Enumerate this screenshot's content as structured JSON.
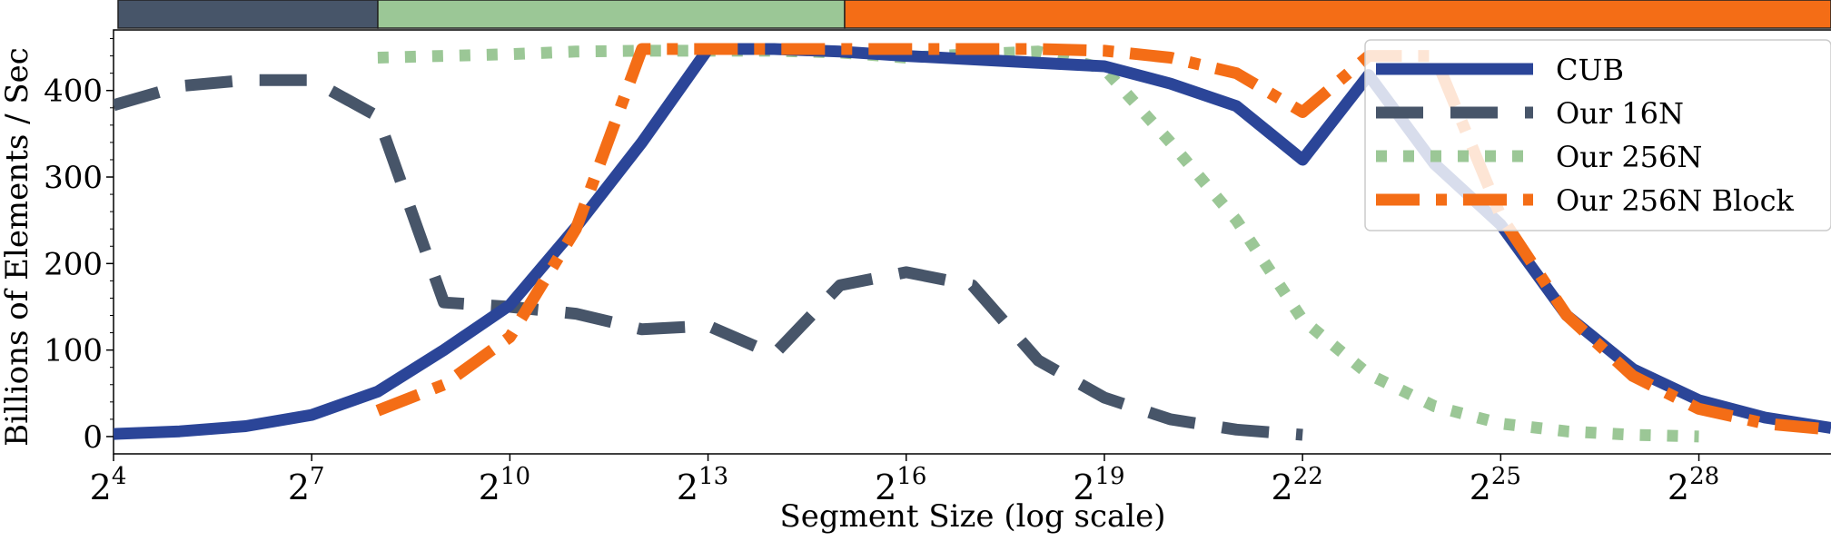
{
  "chart_data": {
    "type": "line",
    "xlabel": "Segment Size (log scale)",
    "ylabel": "Billions of Elements / Sec",
    "x_scale": "log2",
    "xlim_exponent": [
      4,
      30
    ],
    "ylim": [
      -20,
      470
    ],
    "x_ticks": [
      {
        "exp": 4,
        "base": "2",
        "sup": "4"
      },
      {
        "exp": 7,
        "base": "2",
        "sup": "7"
      },
      {
        "exp": 10,
        "base": "2",
        "sup": "10"
      },
      {
        "exp": 13,
        "base": "2",
        "sup": "13"
      },
      {
        "exp": 16,
        "base": "2",
        "sup": "16"
      },
      {
        "exp": 19,
        "base": "2",
        "sup": "19"
      },
      {
        "exp": 22,
        "base": "2",
        "sup": "22"
      },
      {
        "exp": 25,
        "base": "2",
        "sup": "25"
      },
      {
        "exp": 28,
        "base": "2",
        "sup": "28"
      }
    ],
    "y_ticks": [
      0,
      100,
      200,
      300,
      400
    ],
    "grid": false,
    "legend_position": "top-right",
    "series": [
      {
        "name": "CUB",
        "color": "#2b4598",
        "dash": "solid",
        "x_exp": [
          4,
          5,
          6,
          7,
          8,
          9,
          10,
          11,
          12,
          13,
          14,
          15,
          16,
          17,
          18,
          19,
          20,
          21,
          22,
          23,
          24,
          25,
          26,
          27,
          28,
          29,
          30
        ],
        "y": [
          3,
          6,
          12,
          25,
          52,
          100,
          152,
          242,
          340,
          448,
          448,
          445,
          440,
          436,
          432,
          428,
          408,
          382,
          320,
          418,
          315,
          245,
          140,
          78,
          42,
          22,
          10
        ]
      },
      {
        "name": "Our 16N",
        "color": "#475569",
        "dash": "dashed",
        "x_exp": [
          4,
          5,
          6,
          7,
          8,
          9,
          10,
          11,
          12,
          13,
          14,
          15,
          16,
          17,
          18,
          19,
          20,
          21,
          22
        ],
        "y": [
          383,
          405,
          412,
          412,
          370,
          155,
          150,
          142,
          124,
          128,
          95,
          175,
          190,
          175,
          88,
          45,
          20,
          8,
          2
        ]
      },
      {
        "name": "Our 256N",
        "color": "#9bc796",
        "dash": "dotted",
        "x_exp": [
          8,
          9,
          10,
          11,
          12,
          13,
          14,
          15,
          16,
          17,
          18,
          19,
          20,
          21,
          22,
          23,
          24,
          25,
          26,
          27,
          28
        ],
        "y": [
          438,
          440,
          442,
          445,
          446,
          446,
          446,
          444,
          438,
          442,
          445,
          425,
          340,
          250,
          135,
          72,
          35,
          15,
          6,
          2,
          0
        ]
      },
      {
        "name": "Our 256N Block",
        "color": "#f46d16",
        "dash": "dashdot",
        "x_exp": [
          8,
          9,
          10,
          11,
          12,
          13,
          14,
          15,
          16,
          17,
          18,
          19,
          20,
          21,
          22,
          23,
          24,
          25,
          26,
          27,
          28,
          29,
          30
        ],
        "y": [
          30,
          60,
          115,
          240,
          448,
          448,
          448,
          448,
          448,
          448,
          448,
          446,
          438,
          420,
          375,
          440,
          440,
          255,
          140,
          70,
          32,
          15,
          8
        ]
      }
    ],
    "top_strip": [
      {
        "from_exp": 4,
        "to_exp": 8,
        "color": "#475569"
      },
      {
        "from_exp": 8,
        "to_exp": 15,
        "color": "#9bc796"
      },
      {
        "from_exp": 15,
        "to_exp": 30,
        "color": "#f46d16"
      }
    ]
  }
}
